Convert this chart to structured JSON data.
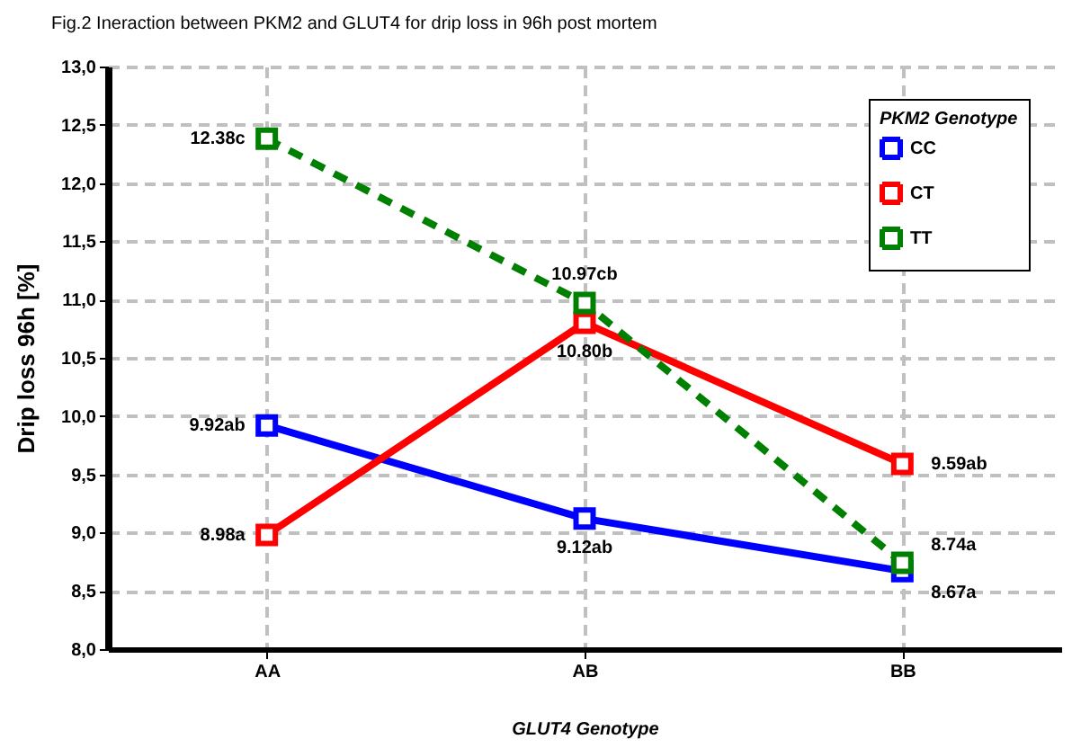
{
  "chart_data": {
    "type": "line",
    "title": "Fig.2 Ineraction between PKM2 and GLUT4 for drip loss in 96h post mortem",
    "xlabel": "GLUT4 Genotype",
    "ylabel": "Drip loss 96h [%]",
    "legend_title": "PKM2 Genotype",
    "categories": [
      "AA",
      "AB",
      "BB"
    ],
    "series": [
      {
        "name": "CC",
        "color": "#0000ff",
        "values": [
          9.92,
          9.12,
          8.67
        ],
        "value_labels": [
          "9.92ab",
          "9.12ab",
          "8.67a"
        ]
      },
      {
        "name": "CT",
        "color": "#ff0000",
        "values": [
          8.98,
          10.8,
          9.59
        ],
        "value_labels": [
          "8.98a",
          "10.80b",
          "9.59ab"
        ]
      },
      {
        "name": "TT",
        "color": "#008000",
        "values": [
          12.38,
          10.97,
          8.74
        ],
        "value_labels": [
          "12.38c",
          "10.97cb",
          "8.74a"
        ],
        "line_style": "dashed"
      }
    ],
    "ylim": [
      8,
      13
    ],
    "yticks": [
      {
        "value": 8,
        "label": "8,0"
      },
      {
        "value": 8.5,
        "label": "8,5"
      },
      {
        "value": 9,
        "label": "9,0"
      },
      {
        "value": 9.5,
        "label": "9,5"
      },
      {
        "value": 10,
        "label": "10,0"
      },
      {
        "value": 10.5,
        "label": "10,5"
      },
      {
        "value": 11,
        "label": "11,0"
      },
      {
        "value": 11.5,
        "label": "11,5"
      },
      {
        "value": 12,
        "label": "12,0"
      },
      {
        "value": 12.5,
        "label": "12,5"
      },
      {
        "value": 13,
        "label": "13,0"
      }
    ],
    "grid": true,
    "legend": "top right",
    "marker": "square"
  }
}
